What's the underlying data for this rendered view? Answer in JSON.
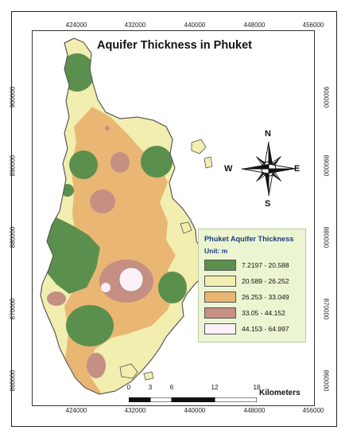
{
  "title": "Aquifer Thickness in Phuket",
  "x_ticks": [
    "424000",
    "432000",
    "440000",
    "448000",
    "456000"
  ],
  "y_ticks": [
    "900000",
    "890000",
    "880000",
    "870000",
    "860000"
  ],
  "legend": {
    "title": "Phuket Aquifer Thickness",
    "unit": "Unit: m",
    "classes": [
      {
        "label": "7.2197 - 20.588",
        "color": "#5b8f4e"
      },
      {
        "label": "20.589 - 26.252",
        "color": "#f1eeb0"
      },
      {
        "label": "26.253 - 33.049",
        "color": "#e9b773"
      },
      {
        "label": "33.05 - 44.152",
        "color": "#c58f83"
      },
      {
        "label": "44.153 - 64.997",
        "color": "#fbf0f7"
      }
    ]
  },
  "north_arrow": {
    "n": "N",
    "s": "S",
    "e": "E",
    "w": "W"
  },
  "scale_bar": {
    "labels": [
      "0",
      "3",
      "6",
      "12",
      "18"
    ],
    "unit": "Kilometers"
  }
}
